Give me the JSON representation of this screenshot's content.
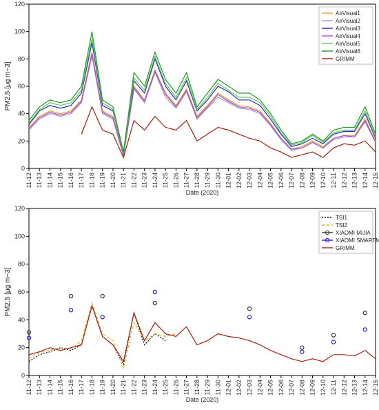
{
  "chart_data": [
    {
      "type": "line",
      "x_label": "Date (2020)",
      "y_label": "PM2.5 [μg m−3]",
      "categories": [
        "11-12",
        "11-13",
        "11-14",
        "11-15",
        "11-16",
        "11-17",
        "11-18",
        "11-19",
        "11-20",
        "11-21",
        "11-22",
        "11-23",
        "11-24",
        "11-25",
        "11-26",
        "11-27",
        "11-28",
        "11-29",
        "11-30",
        "12-01",
        "12-02",
        "12-03",
        "12-04",
        "12-05",
        "12-06",
        "12-07",
        "12-08",
        "12-09",
        "12-10",
        "12-11",
        "12-12",
        "12-13",
        "12-14",
        "12-15"
      ],
      "ylim": [
        0,
        120
      ],
      "yticks": [
        0,
        20,
        40,
        60,
        80,
        100,
        120
      ],
      "legend": "upper right",
      "series": [
        {
          "name": "AirVisual1",
          "color": "#e0a830",
          "linestyle": "solid",
          "values": [
            30,
            38,
            42,
            40,
            42,
            50,
            85,
            42,
            38,
            10,
            60,
            50,
            72,
            55,
            46,
            58,
            38,
            46,
            55,
            50,
            46,
            45,
            42,
            33,
            22,
            14,
            16,
            20,
            16,
            22,
            24,
            24,
            36,
            20
          ]
        },
        {
          "name": "AirVisual2",
          "color": "#9a9ae0",
          "linestyle": "solid",
          "values": [
            28,
            36,
            40,
            38,
            40,
            48,
            82,
            40,
            36,
            9,
            58,
            48,
            70,
            52,
            44,
            56,
            36,
            44,
            52,
            48,
            44,
            43,
            40,
            31,
            21,
            13,
            15,
            19,
            15,
            21,
            23,
            23,
            34,
            19
          ]
        },
        {
          "name": "AirVisual3",
          "color": "#2a2ab8",
          "linestyle": "solid",
          "values": [
            32,
            42,
            46,
            44,
            46,
            55,
            92,
            46,
            42,
            11,
            64,
            55,
            80,
            60,
            50,
            64,
            42,
            50,
            60,
            56,
            50,
            50,
            46,
            36,
            25,
            16,
            18,
            22,
            18,
            25,
            27,
            27,
            40,
            22
          ]
        },
        {
          "name": "AirVisual4",
          "color": "#b048c0",
          "linestyle": "solid",
          "values": [
            29,
            37,
            41,
            39,
            41,
            49,
            84,
            41,
            37,
            10,
            59,
            49,
            71,
            54,
            45,
            57,
            37,
            45,
            54,
            49,
            45,
            44,
            41,
            32,
            22,
            14,
            15,
            19,
            15,
            22,
            24,
            23,
            35,
            19
          ]
        },
        {
          "name": "AirVisual5",
          "color": "#5cc85c",
          "linestyle": "solid",
          "values": [
            33,
            43,
            48,
            46,
            48,
            57,
            95,
            48,
            43,
            11,
            66,
            57,
            82,
            62,
            52,
            66,
            43,
            52,
            62,
            57,
            52,
            52,
            48,
            38,
            26,
            17,
            19,
            24,
            19,
            26,
            28,
            28,
            42,
            23
          ]
        },
        {
          "name": "AirVisual6",
          "color": "#1e9a1e",
          "linestyle": "solid",
          "values": [
            35,
            45,
            50,
            48,
            50,
            60,
            100,
            50,
            45,
            12,
            70,
            60,
            85,
            65,
            55,
            70,
            45,
            55,
            65,
            60,
            55,
            55,
            50,
            40,
            28,
            18,
            20,
            25,
            20,
            28,
            30,
            30,
            45,
            25
          ]
        },
        {
          "name": "GRIMM",
          "color": "#a02010",
          "linestyle": "solid",
          "values": [
            null,
            null,
            null,
            null,
            null,
            25,
            45,
            28,
            25,
            8,
            35,
            28,
            38,
            30,
            28,
            35,
            20,
            25,
            30,
            28,
            25,
            22,
            20,
            15,
            12,
            8,
            10,
            12,
            8,
            15,
            18,
            17,
            20,
            12
          ]
        }
      ]
    },
    {
      "type": "line",
      "x_label": "Date (2020)",
      "y_label": "PM2.5 [μg m−3]",
      "categories": [
        "11-12",
        "11-13",
        "11-14",
        "11-15",
        "11-16",
        "11-17",
        "11-18",
        "11-19",
        "11-20",
        "11-21",
        "11-22",
        "11-23",
        "11-24",
        "11-25",
        "11-26",
        "11-27",
        "11-28",
        "11-29",
        "11-30",
        "12-01",
        "12-02",
        "12-03",
        "12-04",
        "12-05",
        "12-06",
        "12-07",
        "12-08",
        "12-09",
        "12-10",
        "12-11",
        "12-12",
        "12-13",
        "12-14",
        "12-15"
      ],
      "ylim": [
        0,
        120
      ],
      "yticks": [
        0,
        20,
        40,
        60,
        80,
        100,
        120
      ],
      "legend": "upper right",
      "series": [
        {
          "name": "TSI1",
          "color": "#000000",
          "linestyle": "dotted",
          "values": [
            10,
            15,
            17,
            20,
            18,
            22,
            50,
            28,
            22,
            8,
            45,
            22,
            30,
            25,
            null,
            null,
            null,
            null,
            null,
            null,
            null,
            null,
            null,
            null,
            null,
            null,
            null,
            null,
            null,
            null,
            null,
            null,
            null,
            null
          ]
        },
        {
          "name": "TSI2",
          "color": "#e0b020",
          "linestyle": "dashed",
          "values": [
            12,
            17,
            18,
            20,
            19,
            25,
            52,
            30,
            25,
            5,
            38,
            25,
            30,
            28,
            30,
            null,
            null,
            null,
            null,
            null,
            null,
            null,
            null,
            null,
            null,
            null,
            null,
            null,
            null,
            null,
            null,
            null,
            null,
            null
          ]
        },
        {
          "name": "XIAOMI MIJIA",
          "color": "#333333",
          "linestyle": "solid",
          "marker": "circle",
          "values": [
            31,
            null,
            null,
            null,
            57,
            null,
            null,
            57,
            null,
            null,
            null,
            null,
            52,
            null,
            null,
            null,
            null,
            null,
            null,
            null,
            null,
            48,
            null,
            null,
            null,
            null,
            20,
            null,
            null,
            29,
            null,
            null,
            45,
            null
          ]
        },
        {
          "name": "XIAOMI SMARTMI",
          "color": "#2020d0",
          "linestyle": "solid",
          "marker": "circle",
          "values": [
            27,
            null,
            null,
            null,
            47,
            null,
            null,
            42,
            null,
            null,
            null,
            null,
            60,
            null,
            null,
            null,
            null,
            null,
            null,
            null,
            null,
            42,
            null,
            null,
            null,
            null,
            17,
            null,
            null,
            24,
            null,
            null,
            33,
            null
          ]
        },
        {
          "name": "GRIMM",
          "color": "#a02010",
          "linestyle": "solid",
          "values": [
            15,
            17,
            20,
            18,
            20,
            22,
            50,
            28,
            22,
            10,
            45,
            25,
            38,
            30,
            28,
            35,
            22,
            25,
            30,
            28,
            27,
            25,
            22,
            18,
            15,
            12,
            10,
            12,
            10,
            15,
            15,
            14,
            18,
            12
          ]
        }
      ]
    }
  ]
}
